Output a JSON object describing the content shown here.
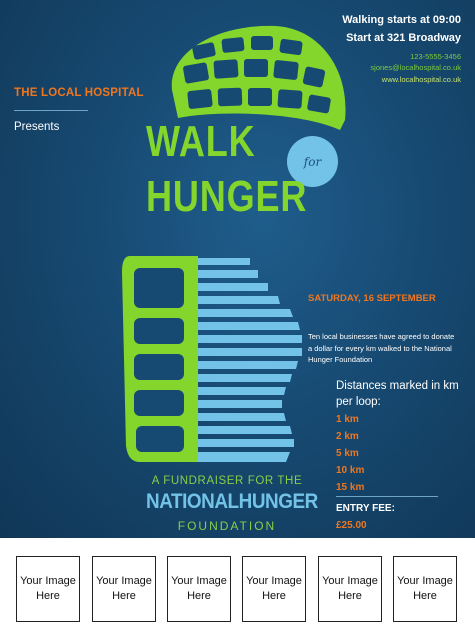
{
  "header": {
    "walk_time": "Walking starts at 09:00",
    "start": "Start at 321 Broadway",
    "phone": "123-5555-3456",
    "email": "sjones@localhospital.co.uk",
    "website": "www.localhospital.co.uk"
  },
  "organizer": {
    "name": "THE LOCAL HOSPITAL",
    "presents": "Presents"
  },
  "title": {
    "line1": "WALK",
    "for": "for",
    "line2": "HUNGER"
  },
  "fundraiser": {
    "line1": "A FUNDRAISER FOR THE",
    "line2": "NATIONALHUNGER",
    "line3": "FOUNDATION"
  },
  "event": {
    "date": "SATURDAY, 16 SEPTEMBER",
    "blurb": "Ten local businesses have agreed to donate a dollar for every km walked to the National Hunger Foundation",
    "distances_heading": "Distances marked in km per loop:",
    "distances": [
      "1 km",
      "2 km",
      "5 km",
      "10 km",
      "15 km"
    ],
    "fee_label": "ENTRY FEE:",
    "fee_value": "£25.00"
  },
  "sponsors": [
    "Your Image Here",
    "Your Image Here",
    "Your Image Here",
    "Your Image Here",
    "Your Image Here",
    "Your Image Here"
  ],
  "colors": {
    "background": "#174a72",
    "orange": "#f0761e",
    "green": "#84d62c",
    "light_blue": "#73c2e8"
  }
}
